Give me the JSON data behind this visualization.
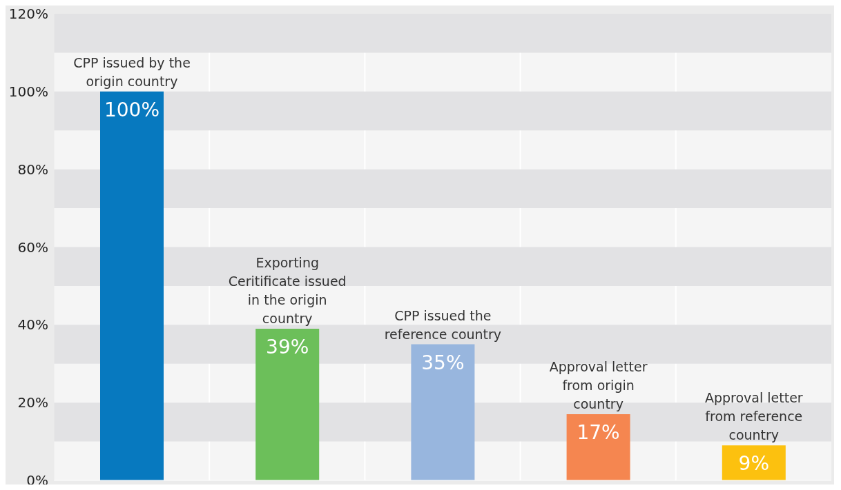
{
  "chart_data": {
    "type": "bar",
    "categories": [
      "CPP issued by the origin country",
      "Exporting Ceritificate issued in the origin country",
      "CPP issued the reference country",
      "Approval letter from origin country",
      "Approval letter from reference country"
    ],
    "values": [
      100,
      39,
      35,
      17,
      9
    ],
    "colors": [
      "#0779bf",
      "#6cbf5a",
      "#98b6de",
      "#f58650",
      "#fcc10f"
    ],
    "value_labels": [
      "100%",
      "39%",
      "35%",
      "17%",
      "9%"
    ],
    "ylim": [
      0,
      120
    ],
    "yticks": [
      {
        "value": 0,
        "label": "0%"
      },
      {
        "value": 20,
        "label": "20%"
      },
      {
        "value": 40,
        "label": "40%"
      },
      {
        "value": 60,
        "label": "60%"
      },
      {
        "value": 80,
        "label": "80%"
      },
      {
        "value": 100,
        "label": "100%"
      },
      {
        "value": 120,
        "label": "120%"
      }
    ],
    "bands": [
      {
        "axis": "y",
        "from": 10,
        "to": 20,
        "color": "#e2e2e4"
      },
      {
        "axis": "y",
        "from": 30,
        "to": 40,
        "color": "#e2e2e4"
      },
      {
        "axis": "y",
        "from": 50,
        "to": 60,
        "color": "#e2e2e4"
      },
      {
        "axis": "y",
        "from": 70,
        "to": 80,
        "color": "#e2e2e4"
      },
      {
        "axis": "y",
        "from": 90,
        "to": 100,
        "color": "#e2e2e4"
      },
      {
        "axis": "y",
        "from": 110,
        "to": 120,
        "color": "#e2e2e4"
      }
    ]
  }
}
